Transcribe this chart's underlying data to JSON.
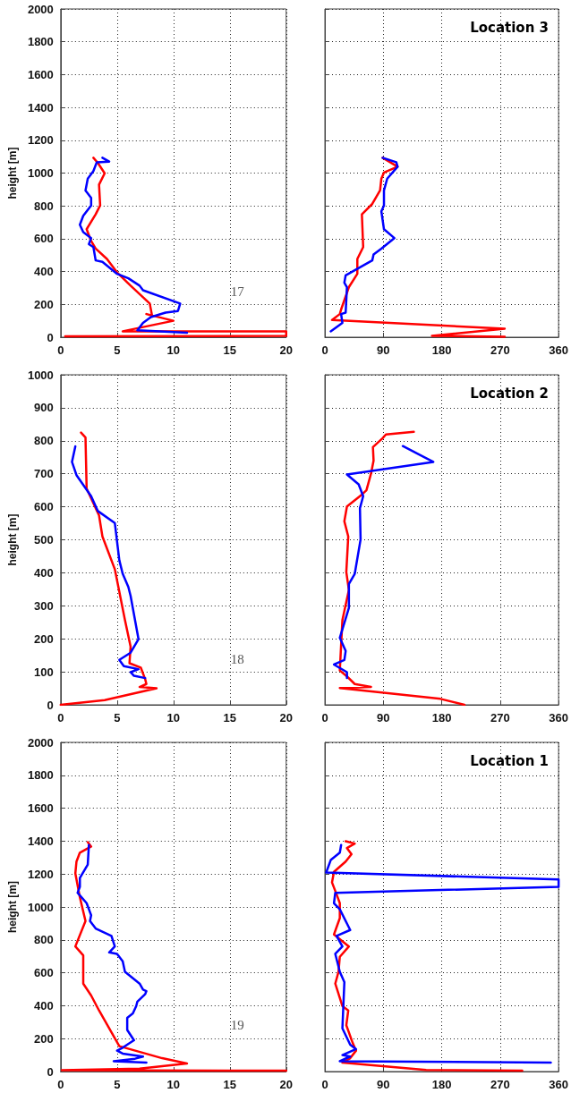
{
  "chart_data": [
    {
      "type": "line",
      "ylabel": "height [m]",
      "xlim": [
        0,
        20
      ],
      "xticks": [
        0,
        5,
        10,
        15,
        20
      ],
      "ylim": [
        0,
        2000
      ],
      "yticks": [
        0,
        200,
        400,
        600,
        800,
        1000,
        1200,
        1400,
        1600,
        1800,
        2000
      ],
      "grid": true,
      "line_style": "solid",
      "annotations": [
        "17"
      ],
      "series": [
        {
          "color": "#ff0000",
          "x": [
            2.9,
            3.3,
            3.9,
            3.4,
            3.5,
            3.1,
            2.3,
            2.7,
            3.1,
            4.1,
            5.0,
            6.2,
            7.9,
            8.1,
            7.6,
            10.0,
            5.5,
            20,
            20,
            0.4
          ],
          "values": [
            1093,
            1061,
            999,
            930,
            803,
            749,
            658,
            586,
            540,
            477,
            395,
            314,
            205,
            132,
            141,
            100,
            36,
            36,
            8,
            5
          ]
        },
        {
          "color": "#0000ff",
          "x": [
            3.7,
            4.3,
            3.2,
            2.9,
            2.4,
            2.2,
            2.7,
            2.7,
            2.0,
            1.7,
            2.0,
            2.7,
            2.5,
            2.9,
            3.1,
            3.7,
            5.0,
            6.0,
            7.0,
            7.3,
            10.6,
            10.4,
            9.3,
            8.0,
            7.3,
            6.8,
            11.2
          ],
          "values": [
            1093,
            1070,
            1066,
            1012,
            966,
            894,
            849,
            803,
            740,
            685,
            640,
            604,
            567,
            549,
            468,
            459,
            386,
            359,
            314,
            286,
            205,
            160,
            150,
            123,
            87,
            42,
            27
          ]
        }
      ]
    },
    {
      "type": "line",
      "title": "Location 3",
      "tick_labels": "x",
      "xlim": [
        0,
        360
      ],
      "xticks": [
        0,
        90,
        180,
        270,
        360
      ],
      "ylim": [
        0,
        2000
      ],
      "yticks": [
        0,
        200,
        400,
        600,
        800,
        1000,
        1200,
        1400,
        1600,
        1800,
        2000
      ],
      "grid": true,
      "line_style": "solid",
      "series": [
        {
          "color": "#ff0000",
          "x": [
            89,
            112,
            91,
            87,
            85,
            73,
            57,
            59,
            50,
            50,
            37,
            25,
            23,
            11,
            277,
            165,
            277
          ],
          "values": [
            1093,
            1039,
            1003,
            966,
            894,
            812,
            749,
            549,
            477,
            386,
            305,
            169,
            141,
            105,
            52,
            8,
            3
          ]
        },
        {
          "color": "#0000ff",
          "x": [
            89,
            110,
            112,
            96,
            91,
            91,
            87,
            91,
            107,
            87,
            75,
            73,
            32,
            30,
            34,
            32,
            25,
            27,
            9
          ],
          "values": [
            1093,
            1066,
            1039,
            966,
            894,
            803,
            767,
            658,
            604,
            540,
            504,
            468,
            377,
            332,
            305,
            150,
            141,
            87,
            36
          ]
        }
      ]
    },
    {
      "type": "line",
      "ylabel": "height [m]",
      "xlim": [
        0,
        20
      ],
      "xticks": [
        0,
        5,
        10,
        15,
        20
      ],
      "ylim": [
        0,
        1000
      ],
      "yticks": [
        0,
        100,
        200,
        300,
        400,
        500,
        600,
        700,
        800,
        900,
        1000
      ],
      "grid": true,
      "line_style": "solid",
      "annotations": [
        "18"
      ],
      "series": [
        {
          "color": "#ff0000",
          "x": [
            1.8,
            2.2,
            2.3,
            3.4,
            3.7,
            4.8,
            5.7,
            6.2,
            6.1,
            7.1,
            7.5,
            7.6,
            7.0,
            8.5,
            3.9,
            0
          ],
          "values": [
            825,
            810,
            655,
            574,
            510,
            411,
            257,
            176,
            126,
            113,
            77,
            63,
            54,
            50,
            14,
            0
          ]
        },
        {
          "color": "#0000ff",
          "x": [
            1.3,
            1.0,
            1.4,
            2.7,
            3.3,
            4.8,
            5.2,
            5.5,
            6.0,
            6.2,
            6.9,
            6.2,
            5.2,
            5.6,
            6.9,
            6.2,
            6.5,
            7.5
          ],
          "values": [
            783,
            736,
            696,
            632,
            587,
            551,
            438,
            397,
            357,
            330,
            199,
            158,
            136,
            117,
            108,
            99,
            88,
            81
          ]
        }
      ]
    },
    {
      "type": "line",
      "title": "Location 2",
      "tick_labels": "x",
      "xlim": [
        0,
        360
      ],
      "xticks": [
        0,
        90,
        180,
        270,
        360
      ],
      "ylim": [
        0,
        1000
      ],
      "yticks": [
        0,
        100,
        200,
        300,
        400,
        500,
        600,
        700,
        800,
        900,
        1000
      ],
      "grid": true,
      "line_style": "solid",
      "series": [
        {
          "color": "#ff0000",
          "x": [
            137,
            94,
            89,
            74,
            75,
            71,
            64,
            57,
            34,
            30,
            36,
            33,
            37,
            27,
            23,
            34,
            46,
            71,
            23,
            178,
            215
          ],
          "values": [
            827,
            819,
            808,
            781,
            740,
            700,
            650,
            637,
            601,
            556,
            510,
            402,
            348,
            257,
            104,
            86,
            63,
            54,
            51,
            18,
            0
          ]
        },
        {
          "color": "#0000ff",
          "x": [
            120,
            167,
            34,
            52,
            59,
            54,
            55,
            46,
            37,
            37,
            23,
            32,
            30,
            14,
            34,
            34
          ],
          "values": [
            784,
            736,
            698,
            668,
            632,
            596,
            501,
            397,
            366,
            294,
            203,
            163,
            136,
            122,
            99,
            81
          ]
        }
      ]
    },
    {
      "type": "line",
      "ylabel": "height [m]",
      "xlim": [
        0,
        20
      ],
      "xticks": [
        0,
        5,
        10,
        15,
        20
      ],
      "ylim": [
        0,
        2000
      ],
      "yticks": [
        0,
        200,
        400,
        600,
        800,
        1000,
        1200,
        1400,
        1600,
        1800,
        2000
      ],
      "grid": true,
      "line_style": "solid",
      "annotations": [
        "19"
      ],
      "series": [
        {
          "color": "#ff0000",
          "x": [
            2.4,
            2.7,
            1.7,
            1.4,
            1.3,
            1.7,
            2.2,
            1.3,
            2.0,
            2.0,
            2.7,
            3.4,
            5.2,
            9.0,
            11.2,
            7.0,
            0.1,
            20
          ],
          "values": [
            1394,
            1367,
            1330,
            1276,
            1204,
            1059,
            914,
            760,
            706,
            534,
            462,
            371,
            154,
            81,
            49,
            18,
            8,
            5
          ]
        },
        {
          "color": "#0000ff",
          "x": [
            2.5,
            2.4,
            1.7,
            1.7,
            1.5,
            2.3,
            2.7,
            2.6,
            3.1,
            4.5,
            4.8,
            4.3,
            5.0,
            5.5,
            5.7,
            7.0,
            7.3,
            7.6,
            7.5,
            6.8,
            6.7,
            6.4,
            5.9,
            5.9,
            6.5,
            5.5,
            5.0,
            5.5,
            7.3,
            6.6,
            4.7,
            7.6
          ],
          "values": [
            1376,
            1258,
            1176,
            1122,
            1086,
            1023,
            950,
            914,
            869,
            824,
            760,
            724,
            715,
            670,
            606,
            534,
            498,
            489,
            471,
            425,
            398,
            353,
            326,
            253,
            190,
            145,
            127,
            109,
            91,
            78,
            63,
            54
          ]
        }
      ]
    },
    {
      "type": "line",
      "title": "Location 1",
      "tick_labels": "x",
      "xlim": [
        0,
        360
      ],
      "xticks": [
        0,
        90,
        180,
        270,
        360
      ],
      "ylim": [
        0,
        2000
      ],
      "yticks": [
        0,
        200,
        400,
        600,
        800,
        1000,
        1200,
        1400,
        1600,
        1800,
        2000
      ],
      "grid": true,
      "line_style": "solid",
      "series": [
        {
          "color": "#ff0000",
          "x": [
            32,
            46,
            34,
            41,
            32,
            14,
            11,
            18,
            23,
            23,
            14,
            37,
            23,
            21,
            16,
            27,
            36,
            33,
            43,
            48,
            39,
            27,
            156,
            304
          ],
          "values": [
            1399,
            1385,
            1358,
            1321,
            1276,
            1213,
            1149,
            1077,
            1023,
            932,
            833,
            760,
            697,
            606,
            534,
            398,
            371,
            281,
            172,
            127,
            81,
            54,
            9,
            5
          ]
        },
        {
          "color": "#0000ff",
          "x": [
            25,
            23,
            9,
            2,
            360,
            360,
            16,
            14,
            23,
            39,
            18,
            27,
            16,
            23,
            30,
            27,
            39,
            48,
            27,
            39,
            23,
            348
          ],
          "values": [
            1376,
            1330,
            1285,
            1209,
            1167,
            1122,
            1086,
            1023,
            986,
            860,
            824,
            760,
            715,
            606,
            543,
            262,
            163,
            136,
            100,
            91,
            63,
            54
          ]
        }
      ]
    }
  ]
}
